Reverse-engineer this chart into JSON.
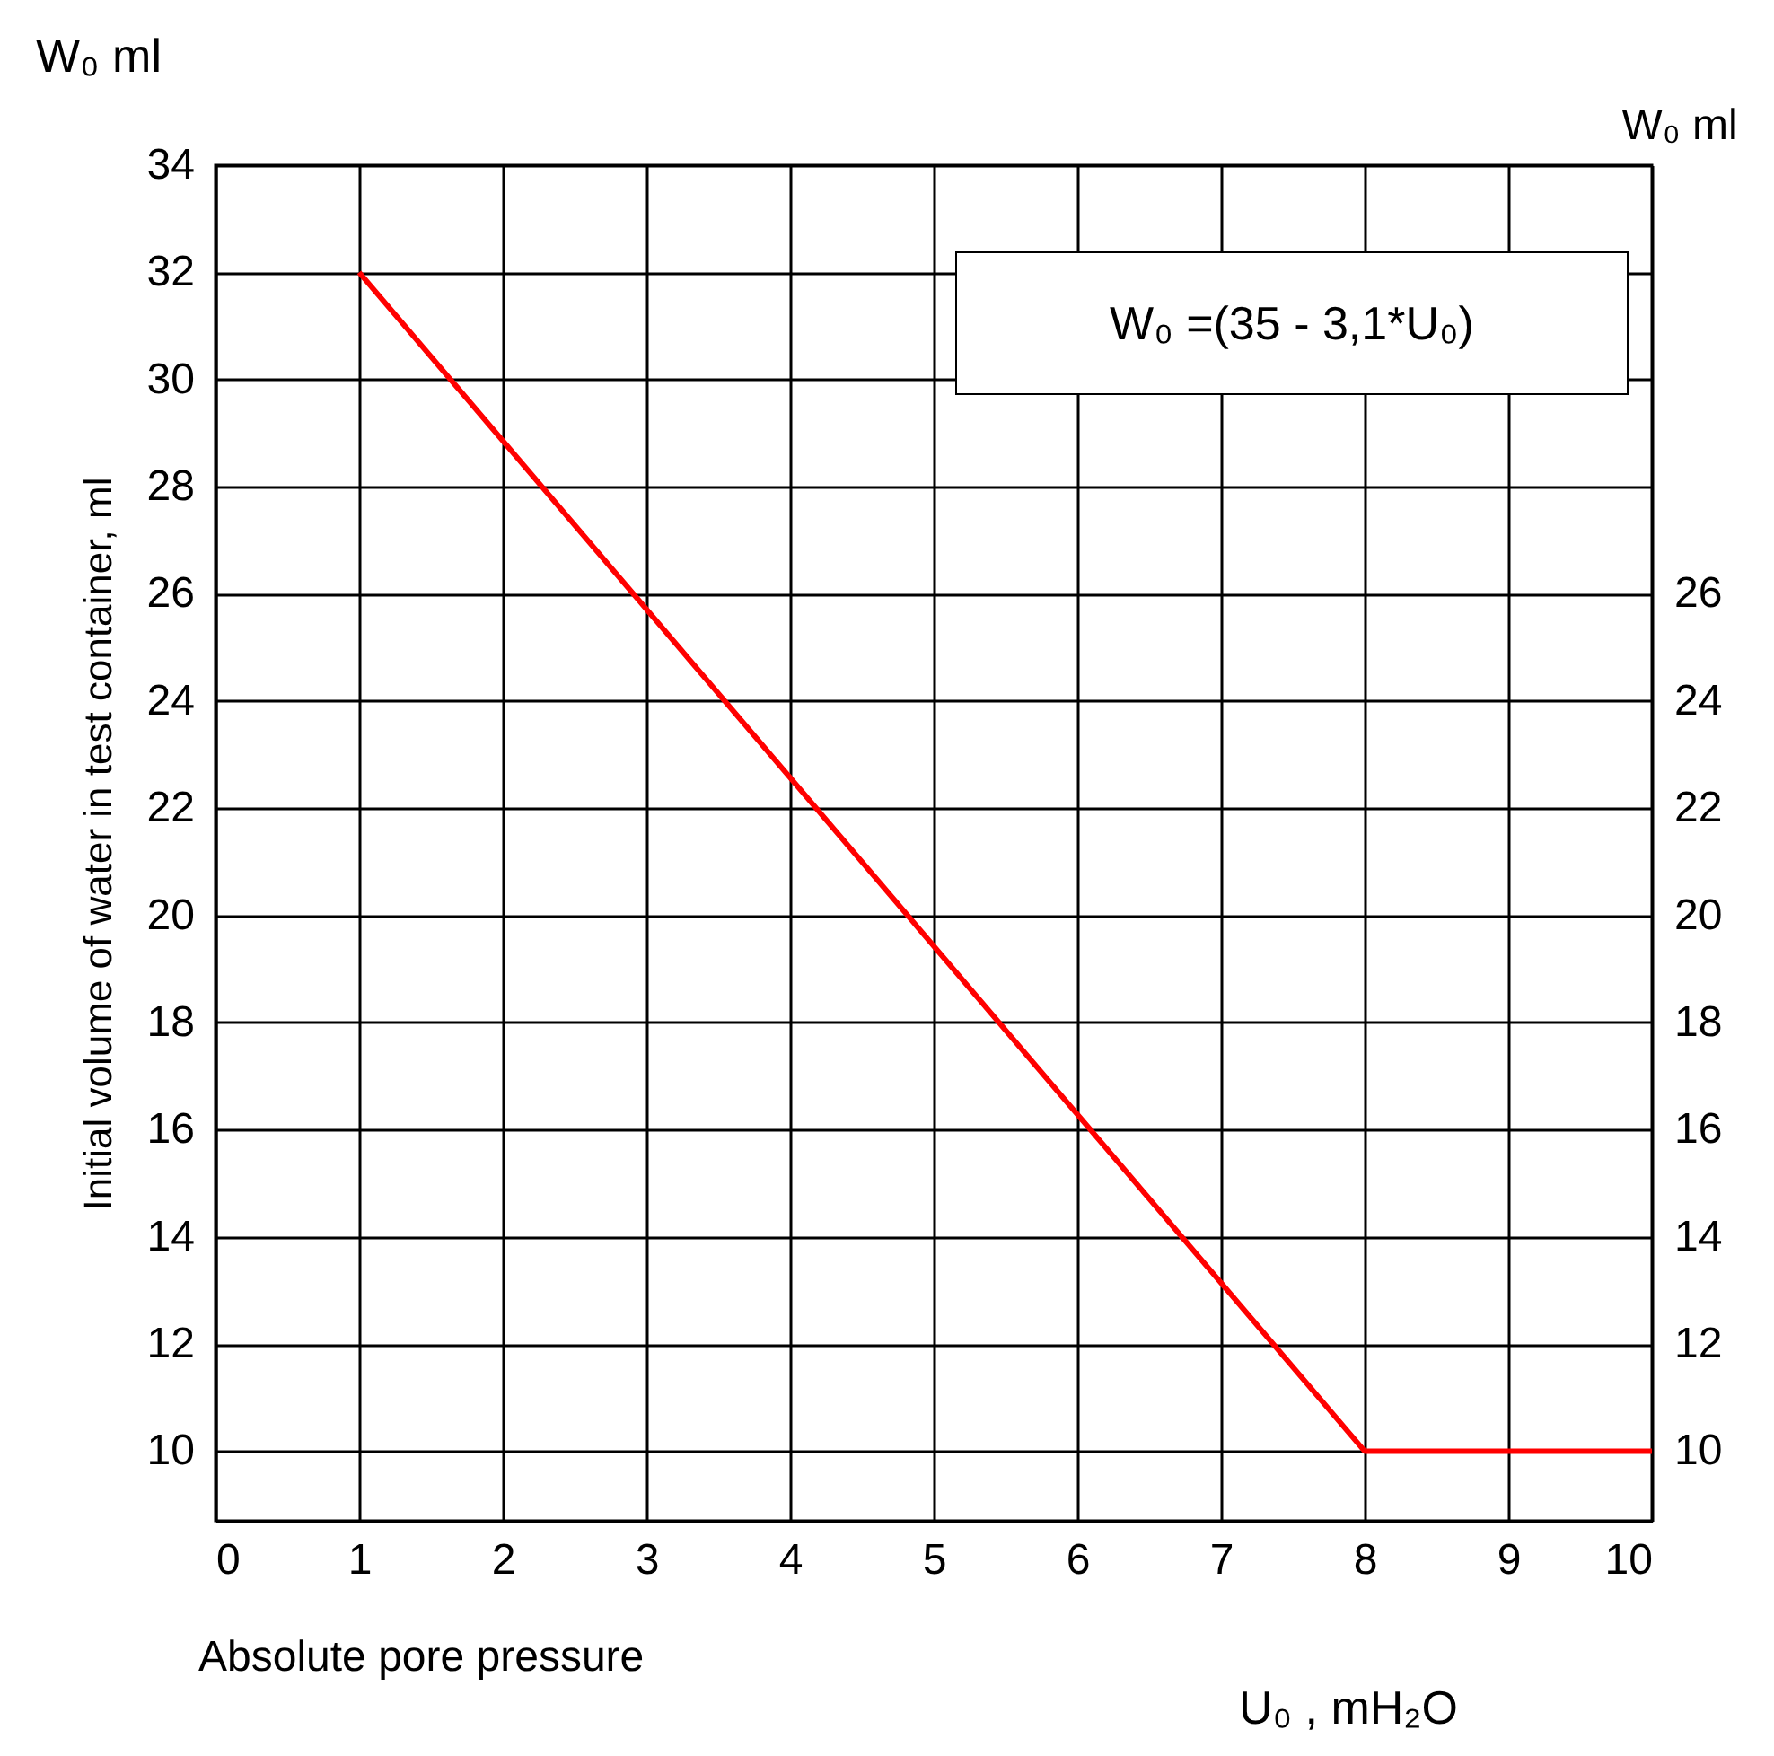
{
  "chart_data": {
    "type": "line",
    "xlabel": "Absolute pore pressure",
    "ylabel": "Initial volume of water in test container, ml",
    "y2label": "W₀  ml",
    "annotations": [
      "W₀  ml",
      "W₀ =(35 - 3,1*U₀)",
      "U₀ , mH₂O"
    ],
    "x": [
      1,
      8,
      10
    ],
    "series": [
      {
        "color": "#ff0000",
        "values": [
          32,
          10,
          10
        ]
      }
    ],
    "xlim": [
      0,
      10
    ],
    "xticks": [
      0,
      1,
      2,
      3,
      4,
      5,
      6,
      7,
      8,
      9,
      10
    ],
    "ylim": [
      8.7,
      34
    ],
    "yticks": [
      10,
      12,
      14,
      16,
      18,
      20,
      22,
      24,
      26,
      28,
      30,
      32,
      34
    ],
    "y2lim": [
      8.7,
      34
    ],
    "y2ticks": [
      10,
      12,
      14,
      16,
      18,
      20,
      22,
      24,
      26
    ],
    "grid": true
  }
}
